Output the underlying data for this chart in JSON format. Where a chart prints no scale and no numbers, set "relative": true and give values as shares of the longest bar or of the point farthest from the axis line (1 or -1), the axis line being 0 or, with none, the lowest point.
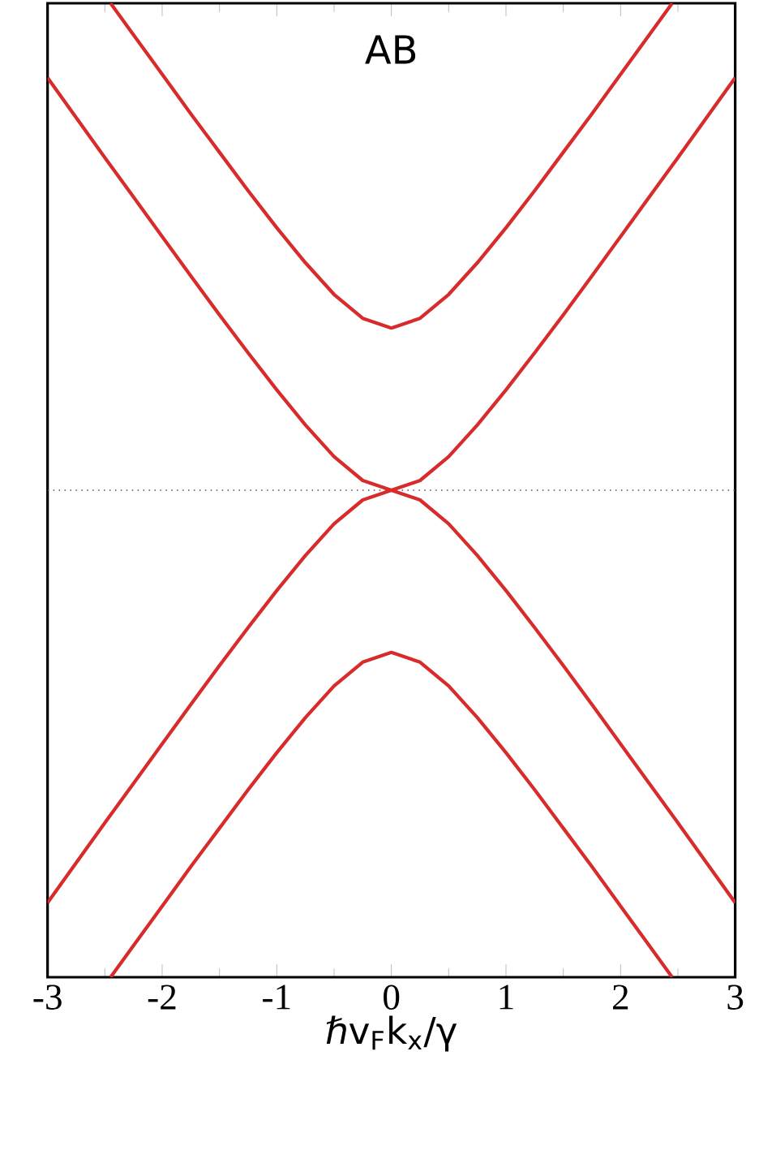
{
  "chart_data": {
    "type": "line",
    "relative": true,
    "xlabel": "ℏv$_{F}$k$_{x}$/γ",
    "xlim": [
      -3,
      3
    ],
    "xticks": [
      -3,
      -2,
      -1,
      0,
      1,
      2,
      3
    ],
    "annotations": [
      "AB"
    ],
    "ref_lines": [
      {
        "axis": "y",
        "value": 0,
        "color": "#555555",
        "line_style": "dotted"
      }
    ],
    "series": [
      {
        "color": "#d82c2c",
        "x": [
          -3,
          -2.75,
          -2.5,
          -2.25,
          -2,
          -1.75,
          -1.5,
          -1.25,
          -1,
          -0.75,
          -0.5,
          -0.25,
          0,
          0.25,
          0.5,
          0.75,
          1,
          1.25,
          1.5,
          1.75,
          2,
          2.25,
          2.5,
          2.75,
          3
        ],
        "values": [
          0.847,
          0.765,
          0.683,
          0.602,
          0.521,
          0.44,
          0.36,
          0.282,
          0.206,
          0.134,
          0.069,
          0.02,
          0,
          0.02,
          0.069,
          0.134,
          0.206,
          0.282,
          0.36,
          0.44,
          0.521,
          0.602,
          0.683,
          0.765,
          0.847
        ]
      },
      {
        "color": "#d82c2c",
        "x": [
          -3,
          -2.75,
          -2.5,
          -2.25,
          -2,
          -1.75,
          -1.5,
          -1.25,
          -1,
          -0.75,
          -0.5,
          -0.25,
          0,
          0.25,
          0.5,
          0.75,
          1,
          1.25,
          1.5,
          1.75,
          2,
          2.25,
          2.5,
          2.75,
          3
        ],
        "values": [
          -0.847,
          -0.765,
          -0.683,
          -0.602,
          -0.521,
          -0.44,
          -0.36,
          -0.282,
          -0.206,
          -0.134,
          -0.069,
          -0.02,
          0,
          -0.02,
          -0.069,
          -0.134,
          -0.206,
          -0.282,
          -0.36,
          -0.44,
          -0.521,
          -0.602,
          -0.683,
          -0.765,
          -0.847
        ]
      },
      {
        "color": "#d82c2c",
        "x": [
          -2.45,
          -2.25,
          -2,
          -1.75,
          -1.5,
          -1.25,
          -1,
          -0.75,
          -0.5,
          -0.25,
          0,
          0.25,
          0.5,
          0.75,
          1,
          1.25,
          1.5,
          1.75,
          2,
          2.25,
          2.45
        ],
        "values": [
          1.0,
          0.935,
          0.854,
          0.773,
          0.694,
          0.615,
          0.539,
          0.467,
          0.402,
          0.353,
          0.333,
          0.353,
          0.402,
          0.467,
          0.539,
          0.615,
          0.694,
          0.773,
          0.854,
          0.935,
          1.0
        ]
      },
      {
        "color": "#d82c2c",
        "x": [
          -2.45,
          -2.25,
          -2,
          -1.75,
          -1.5,
          -1.25,
          -1,
          -0.75,
          -0.5,
          -0.25,
          0,
          0.25,
          0.5,
          0.75,
          1,
          1.25,
          1.5,
          1.75,
          2,
          2.25,
          2.45
        ],
        "values": [
          -1.0,
          -0.935,
          -0.854,
          -0.773,
          -0.694,
          -0.615,
          -0.539,
          -0.467,
          -0.402,
          -0.353,
          -0.333,
          -0.353,
          -0.402,
          -0.467,
          -0.539,
          -0.615,
          -0.694,
          -0.773,
          -0.854,
          -0.935,
          -1.0
        ]
      }
    ]
  }
}
